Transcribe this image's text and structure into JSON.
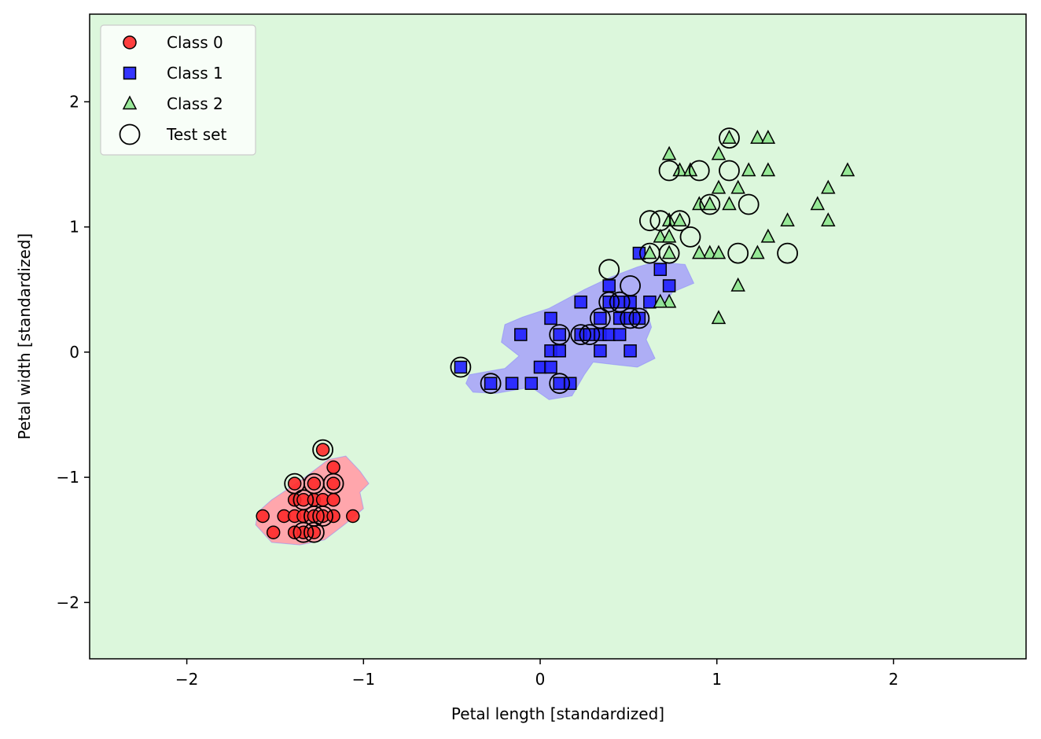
{
  "chart_data": {
    "type": "scatter",
    "title": "",
    "xlabel": "Petal length [standardized]",
    "ylabel": "Petal width [standardized]",
    "xlim": [
      -2.55,
      2.75
    ],
    "ylim": [
      -2.45,
      2.7
    ],
    "xticks": [
      -2,
      -1,
      0,
      1,
      2
    ],
    "yticks": [
      -2,
      -1,
      0,
      1,
      2
    ],
    "xtick_labels": [
      "−2",
      "−1",
      "0",
      "1",
      "2"
    ],
    "ytick_labels": [
      "−2",
      "−1",
      "0",
      "1",
      "2"
    ],
    "grid": false,
    "legend_position": "top-left",
    "colors": {
      "background_region": "#dcf7dc",
      "class0_region": "#ffa6ac",
      "class1_region": "#aeaef5",
      "class0": "#ff2a2a",
      "class1": "#1f1fff",
      "class2": "#8ee68e",
      "edge": "#000000"
    },
    "decision_regions": [
      {
        "class": "Class 0",
        "polygon": [
          [
            -1.6,
            -1.28
          ],
          [
            -1.52,
            -1.18
          ],
          [
            -1.35,
            -1.02
          ],
          [
            -1.2,
            -0.86
          ],
          [
            -1.1,
            -0.83
          ],
          [
            -1.02,
            -0.95
          ],
          [
            -0.97,
            -1.05
          ],
          [
            -1.02,
            -1.12
          ],
          [
            -1.0,
            -1.25
          ],
          [
            -1.1,
            -1.37
          ],
          [
            -1.22,
            -1.5
          ],
          [
            -1.36,
            -1.54
          ],
          [
            -1.52,
            -1.52
          ],
          [
            -1.61,
            -1.38
          ]
        ]
      },
      {
        "class": "Class 1",
        "polygon": [
          [
            -0.4,
            -0.18
          ],
          [
            -0.2,
            -0.13
          ],
          [
            -0.12,
            -0.03
          ],
          [
            -0.22,
            0.08
          ],
          [
            -0.2,
            0.22
          ],
          [
            -0.1,
            0.28
          ],
          [
            0.05,
            0.35
          ],
          [
            0.25,
            0.5
          ],
          [
            0.4,
            0.6
          ],
          [
            0.55,
            0.68
          ],
          [
            0.65,
            0.72
          ],
          [
            0.82,
            0.7
          ],
          [
            0.87,
            0.55
          ],
          [
            0.75,
            0.48
          ],
          [
            0.7,
            0.38
          ],
          [
            0.6,
            0.35
          ],
          [
            0.63,
            0.2
          ],
          [
            0.6,
            0.1
          ],
          [
            0.65,
            -0.05
          ],
          [
            0.55,
            -0.12
          ],
          [
            0.42,
            -0.1
          ],
          [
            0.3,
            -0.08
          ],
          [
            0.25,
            -0.18
          ],
          [
            0.18,
            -0.35
          ],
          [
            0.05,
            -0.38
          ],
          [
            -0.05,
            -0.28
          ],
          [
            -0.25,
            -0.33
          ],
          [
            -0.38,
            -0.32
          ],
          [
            -0.42,
            -0.25
          ]
        ]
      }
    ],
    "series": [
      {
        "name": "Class 0",
        "marker": "circle",
        "points": [
          [
            -1.57,
            -1.31
          ],
          [
            -1.51,
            -1.44
          ],
          [
            -1.45,
            -1.31
          ],
          [
            -1.39,
            -1.18
          ],
          [
            -1.39,
            -1.31
          ],
          [
            -1.39,
            -1.05
          ],
          [
            -1.34,
            -1.18
          ],
          [
            -1.34,
            -1.31
          ],
          [
            -1.34,
            -1.44
          ],
          [
            -1.28,
            -1.18
          ],
          [
            -1.28,
            -1.31
          ],
          [
            -1.28,
            -1.05
          ],
          [
            -1.28,
            -1.44
          ],
          [
            -1.23,
            -1.31
          ],
          [
            -1.23,
            -1.18
          ],
          [
            -1.23,
            -0.78
          ],
          [
            -1.17,
            -0.92
          ],
          [
            -1.17,
            -1.05
          ],
          [
            -1.17,
            -1.18
          ],
          [
            -1.17,
            -1.31
          ],
          [
            -1.06,
            -1.31
          ],
          [
            -1.39,
            -1.44
          ]
        ]
      },
      {
        "name": "Class 1",
        "marker": "square",
        "points": [
          [
            -0.45,
            -0.12
          ],
          [
            -0.28,
            -0.25
          ],
          [
            -0.16,
            -0.25
          ],
          [
            -0.11,
            0.14
          ],
          [
            -0.05,
            -0.25
          ],
          [
            0.0,
            -0.12
          ],
          [
            0.06,
            0.01
          ],
          [
            0.06,
            -0.12
          ],
          [
            0.06,
            0.27
          ],
          [
            0.11,
            0.01
          ],
          [
            0.11,
            0.14
          ],
          [
            0.11,
            -0.25
          ],
          [
            0.17,
            -0.25
          ],
          [
            0.23,
            0.14
          ],
          [
            0.23,
            0.4
          ],
          [
            0.28,
            0.14
          ],
          [
            0.34,
            0.14
          ],
          [
            0.34,
            0.01
          ],
          [
            0.34,
            0.27
          ],
          [
            0.39,
            0.4
          ],
          [
            0.39,
            0.14
          ],
          [
            0.39,
            0.53
          ],
          [
            0.45,
            0.4
          ],
          [
            0.45,
            0.14
          ],
          [
            0.45,
            0.27
          ],
          [
            0.51,
            0.4
          ],
          [
            0.51,
            0.27
          ],
          [
            0.51,
            0.01
          ],
          [
            0.56,
            0.27
          ],
          [
            0.56,
            0.79
          ],
          [
            0.62,
            0.4
          ],
          [
            0.68,
            0.66
          ],
          [
            0.73,
            0.53
          ]
        ]
      },
      {
        "name": "Class 2",
        "marker": "triangle",
        "points": [
          [
            0.62,
            0.79
          ],
          [
            0.68,
            0.92
          ],
          [
            0.73,
            1.58
          ],
          [
            0.73,
            1.05
          ],
          [
            0.73,
            0.79
          ],
          [
            0.73,
            0.4
          ],
          [
            0.79,
            1.45
          ],
          [
            0.85,
            1.45
          ],
          [
            0.9,
            1.18
          ],
          [
            0.96,
            0.79
          ],
          [
            1.01,
            1.31
          ],
          [
            1.01,
            1.58
          ],
          [
            1.01,
            0.79
          ],
          [
            1.01,
            0.27
          ],
          [
            1.07,
            1.18
          ],
          [
            1.07,
            1.71
          ],
          [
            1.12,
            1.31
          ],
          [
            1.12,
            0.53
          ],
          [
            1.18,
            1.45
          ],
          [
            1.23,
            1.71
          ],
          [
            1.23,
            0.79
          ],
          [
            1.29,
            1.71
          ],
          [
            1.29,
            1.45
          ],
          [
            1.29,
            0.92
          ],
          [
            1.4,
            1.05
          ],
          [
            1.57,
            1.18
          ],
          [
            1.63,
            1.31
          ],
          [
            1.63,
            1.05
          ],
          [
            1.74,
            1.45
          ],
          [
            0.9,
            0.79
          ],
          [
            0.68,
            0.4
          ],
          [
            0.73,
            0.92
          ],
          [
            0.79,
            1.05
          ],
          [
            0.96,
            1.18
          ]
        ]
      },
      {
        "name": "Test set",
        "marker": "open-circle",
        "points": [
          [
            -1.23,
            -0.78
          ],
          [
            -1.39,
            -1.05
          ],
          [
            -1.28,
            -1.05
          ],
          [
            -1.17,
            -1.05
          ],
          [
            -1.34,
            -1.18
          ],
          [
            -1.28,
            -1.31
          ],
          [
            -1.23,
            -1.31
          ],
          [
            -1.34,
            -1.44
          ],
          [
            -1.28,
            -1.44
          ],
          [
            -0.45,
            -0.12
          ],
          [
            -0.28,
            -0.25
          ],
          [
            0.11,
            0.14
          ],
          [
            0.11,
            -0.25
          ],
          [
            0.23,
            0.14
          ],
          [
            0.28,
            0.14
          ],
          [
            0.34,
            0.27
          ],
          [
            0.39,
            0.66
          ],
          [
            0.39,
            0.4
          ],
          [
            0.45,
            0.4
          ],
          [
            0.51,
            0.53
          ],
          [
            0.51,
            0.27
          ],
          [
            0.56,
            0.27
          ],
          [
            0.62,
            1.05
          ],
          [
            0.62,
            0.79
          ],
          [
            0.68,
            1.05
          ],
          [
            0.73,
            0.79
          ],
          [
            0.79,
            1.05
          ],
          [
            0.85,
            0.92
          ],
          [
            0.73,
            1.45
          ],
          [
            0.9,
            1.45
          ],
          [
            0.96,
            1.18
          ],
          [
            1.07,
            1.45
          ],
          [
            1.07,
            1.71
          ],
          [
            1.18,
            1.18
          ],
          [
            1.12,
            0.79
          ],
          [
            1.4,
            0.79
          ]
        ]
      }
    ]
  }
}
